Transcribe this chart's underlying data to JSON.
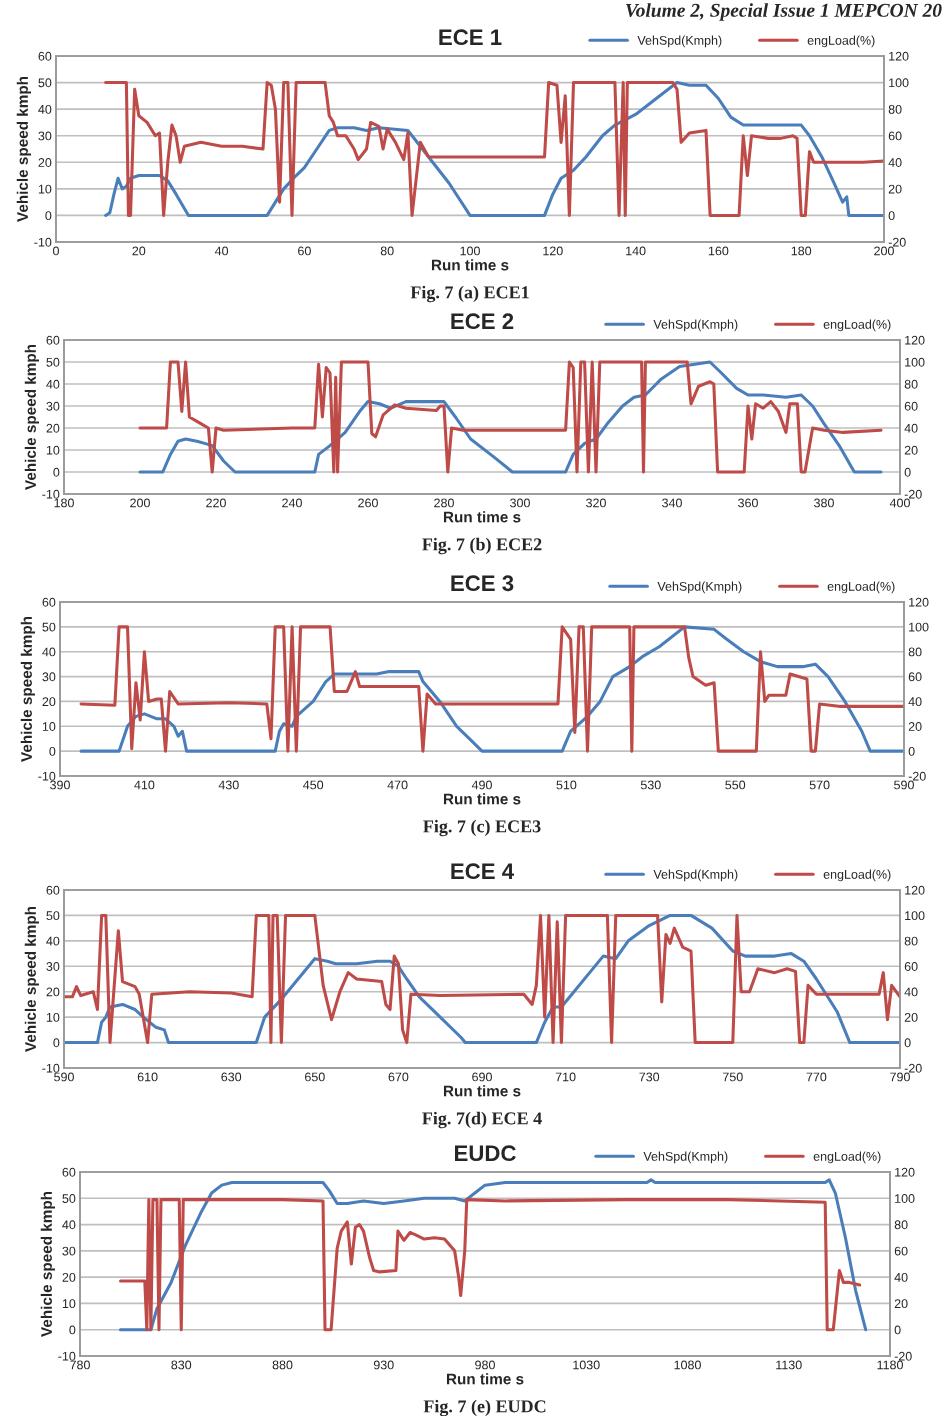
{
  "chart_data": [
    {
      "type": "line",
      "title": "ECE 1",
      "xlabel": "Run time s",
      "ylabel": "Vehicle speed kmph",
      "annotations": [
        "Volume 2, Special Issue 1 MEPCON 20",
        "Fig. 7 (a) ECE1"
      ],
      "xlim": [
        0,
        200
      ],
      "xticks": [
        0,
        20,
        40,
        60,
        80,
        100,
        120,
        140,
        160,
        180,
        200
      ],
      "ylim": [
        -10,
        60
      ],
      "yticks": [
        -10,
        0,
        10,
        20,
        30,
        40,
        50,
        60
      ],
      "y2lim": [
        -20,
        120
      ],
      "y2ticks": [
        -20,
        0,
        20,
        40,
        60,
        80,
        100,
        120
      ],
      "grid": "y",
      "legend": "top right",
      "series": [
        {
          "name": "VehSpd(Kmph)",
          "color": "#4a7ebb",
          "x": [
            12,
            13,
            14,
            15,
            16,
            17,
            18,
            20,
            25,
            27,
            29,
            32,
            51,
            53,
            55,
            58,
            60,
            63,
            66,
            68,
            72,
            75,
            78,
            85,
            87,
            90,
            95,
            100,
            118,
            120,
            122,
            125,
            128,
            132,
            135,
            140,
            145,
            150,
            153,
            157,
            160,
            163,
            166,
            180,
            182,
            185,
            188,
            190,
            191,
            191.5,
            200
          ],
          "values": [
            0,
            1,
            8,
            14,
            10,
            11,
            14,
            15,
            15,
            13,
            8,
            0,
            0,
            5,
            10,
            15,
            18,
            25,
            32,
            33,
            33,
            32,
            33,
            32,
            28,
            22,
            12,
            0,
            0,
            8,
            14,
            17,
            22,
            30,
            34,
            38,
            44,
            50,
            49,
            49,
            44,
            37,
            34,
            34,
            30,
            22,
            12,
            5,
            7,
            0,
            0
          ]
        },
        {
          "name": "engLoad(%)",
          "color": "#be4b48",
          "axis": "y2",
          "x": [
            12,
            17,
            17.5,
            18,
            19,
            20,
            22,
            24,
            25,
            26,
            27,
            28,
            29,
            30,
            31,
            35,
            40,
            45,
            50,
            51,
            52,
            53,
            54,
            55,
            56,
            57,
            58,
            65,
            66,
            67,
            68,
            70,
            72,
            73,
            75,
            76,
            78,
            79,
            80,
            82,
            84,
            85,
            86,
            88,
            90,
            100,
            110,
            118,
            119,
            121,
            122,
            123,
            124,
            125,
            135,
            136,
            137,
            137.5,
            138,
            149,
            150,
            151,
            153,
            157,
            158,
            165,
            166,
            167,
            168,
            172,
            175,
            178,
            179,
            180,
            181,
            182,
            183,
            190,
            195,
            200
          ],
          "values": [
            100,
            100,
            0,
            0,
            95,
            75,
            70,
            60,
            62,
            0,
            40,
            68,
            60,
            40,
            52,
            55,
            52,
            52,
            50,
            100,
            98,
            80,
            10,
            100,
            100,
            0,
            100,
            100,
            75,
            70,
            60,
            60,
            50,
            42,
            50,
            70,
            67,
            50,
            65,
            55,
            42,
            62,
            0,
            55,
            44,
            44,
            44,
            44,
            100,
            98,
            55,
            90,
            0,
            100,
            100,
            0,
            100,
            0,
            100,
            100,
            95,
            55,
            62,
            64,
            0,
            0,
            60,
            30,
            60,
            58,
            58,
            60,
            58,
            0,
            0,
            48,
            40,
            40,
            40,
            41
          ]
        }
      ]
    },
    {
      "type": "line",
      "title": "ECE 2",
      "xlabel": "Run time s",
      "ylabel": "Vehicle speed kmph",
      "annotations": [
        "Fig. 7 (b) ECE2"
      ],
      "xlim": [
        180,
        400
      ],
      "xticks": [
        180,
        200,
        220,
        240,
        260,
        280,
        300,
        320,
        340,
        360,
        380,
        400
      ],
      "ylim": [
        -10,
        60
      ],
      "yticks": [
        -10,
        0,
        10,
        20,
        30,
        40,
        50,
        60
      ],
      "y2lim": [
        -20,
        120
      ],
      "y2ticks": [
        -20,
        0,
        20,
        40,
        60,
        80,
        100,
        120
      ],
      "grid": "y",
      "legend": "top right",
      "series": [
        {
          "name": "VehSpd(Kmph)",
          "color": "#4a7ebb",
          "x": [
            200,
            206,
            208,
            210,
            212,
            215,
            217,
            219,
            222,
            225,
            246,
            247,
            250,
            254,
            258,
            260,
            263,
            266,
            270,
            278,
            280,
            283,
            287,
            293,
            298,
            312,
            314,
            317,
            320,
            323,
            327,
            330,
            333,
            337,
            342,
            350,
            353,
            357,
            360,
            364,
            370,
            374,
            377,
            380,
            384,
            387,
            388,
            395
          ],
          "values": [
            0,
            0,
            8,
            14,
            15,
            14,
            13,
            12,
            5,
            0,
            0,
            8,
            12,
            18,
            28,
            32,
            31,
            29,
            32,
            32,
            32,
            25,
            15,
            7,
            0,
            0,
            8,
            13,
            15,
            22,
            30,
            34,
            35,
            42,
            48,
            50,
            45,
            38,
            35,
            35,
            34,
            35,
            30,
            22,
            12,
            3,
            0,
            0
          ]
        },
        {
          "name": "engLoad(%)",
          "color": "#be4b48",
          "axis": "y2",
          "x": [
            200,
            207,
            208,
            210,
            211,
            212,
            213,
            216,
            218,
            219,
            220,
            222,
            240,
            246,
            247,
            248,
            249,
            250,
            251,
            251.5,
            252,
            253,
            260,
            261,
            262,
            264,
            267,
            270,
            278,
            279,
            280,
            281,
            282,
            285,
            300,
            312,
            313,
            314,
            315,
            316,
            317,
            318,
            319,
            320,
            321,
            332,
            332.5,
            333,
            344,
            345,
            347,
            350,
            351,
            352,
            359,
            360,
            361,
            362,
            364,
            366,
            368,
            370,
            371,
            373,
            374,
            375,
            377,
            380,
            385,
            395
          ],
          "values": [
            40,
            40,
            100,
            100,
            55,
            100,
            50,
            44,
            40,
            0,
            40,
            38,
            40,
            40,
            98,
            50,
            95,
            90,
            0,
            86,
            0,
            100,
            100,
            35,
            32,
            52,
            61,
            58,
            56,
            60,
            60,
            0,
            40,
            38,
            38,
            38,
            100,
            95,
            0,
            100,
            100,
            0,
            100,
            0,
            100,
            100,
            0,
            100,
            100,
            62,
            78,
            82,
            80,
            0,
            0,
            60,
            30,
            62,
            58,
            64,
            55,
            36,
            62,
            62,
            0,
            0,
            40,
            38,
            36,
            38
          ]
        }
      ]
    },
    {
      "type": "line",
      "title": "ECE 3",
      "xlabel": "Run time s",
      "ylabel": "Vehicle speed kmph",
      "annotations": [
        "Fig. 7 (c) ECE3"
      ],
      "xlim": [
        390,
        590
      ],
      "xticks": [
        390,
        410,
        430,
        450,
        470,
        490,
        510,
        530,
        550,
        570,
        590
      ],
      "ylim": [
        -10,
        60
      ],
      "yticks": [
        -10,
        0,
        10,
        20,
        30,
        40,
        50,
        60
      ],
      "y2lim": [
        -20,
        120
      ],
      "y2ticks": [
        -20,
        0,
        20,
        40,
        60,
        80,
        100,
        120
      ],
      "grid": "y",
      "legend": "top right",
      "series": [
        {
          "name": "VehSpd(Kmph)",
          "color": "#4a7ebb",
          "x": [
            395,
            404,
            406,
            408,
            410,
            413,
            415,
            417,
            418,
            419,
            420,
            441,
            442,
            443,
            445,
            446,
            450,
            453,
            455,
            465,
            468,
            475,
            476,
            480,
            484,
            487,
            490,
            509,
            511,
            513,
            515,
            518,
            521,
            525,
            528,
            532,
            538,
            545,
            548,
            552,
            556,
            560,
            566,
            569,
            572,
            576,
            580,
            582,
            590
          ],
          "values": [
            0,
            0,
            10,
            14,
            15,
            13,
            13,
            10,
            6,
            8,
            0,
            0,
            8,
            11,
            10,
            14,
            20,
            28,
            31,
            31,
            32,
            32,
            28,
            20,
            10,
            5,
            0,
            0,
            8,
            11,
            14,
            20,
            30,
            34,
            38,
            42,
            50,
            49,
            45,
            40,
            36,
            34,
            34,
            35,
            30,
            20,
            8,
            0,
            0
          ]
        },
        {
          "name": "engLoad(%)",
          "color": "#be4b48",
          "axis": "y2",
          "x": [
            395,
            403,
            404,
            406,
            407,
            408,
            409,
            410,
            411,
            413,
            414,
            415,
            416,
            418,
            430,
            439,
            440,
            441,
            443,
            444,
            445,
            446,
            447,
            454,
            455,
            458,
            460,
            461,
            470,
            475,
            476,
            477,
            479,
            500,
            508,
            509,
            511,
            512,
            513,
            514,
            515,
            516,
            525,
            525.5,
            526,
            538,
            539,
            540,
            543,
            545,
            546,
            555,
            556,
            557,
            558,
            562,
            563,
            565,
            567,
            568,
            569,
            570,
            575,
            590
          ],
          "values": [
            38,
            37,
            100,
            100,
            2,
            55,
            25,
            80,
            40,
            42,
            42,
            0,
            48,
            38,
            39,
            38,
            10,
            100,
            100,
            0,
            100,
            0,
            100,
            100,
            48,
            48,
            64,
            52,
            52,
            52,
            0,
            46,
            38,
            38,
            38,
            100,
            90,
            15,
            100,
            100,
            0,
            100,
            100,
            0,
            100,
            100,
            75,
            60,
            53,
            55,
            0,
            0,
            80,
            40,
            45,
            45,
            62,
            60,
            58,
            0,
            0,
            38,
            36,
            36
          ]
        }
      ]
    },
    {
      "type": "line",
      "title": "ECE 4",
      "xlabel": "Run time s",
      "ylabel": "Vehicle speed kmph",
      "annotations": [
        "Fig. 7(d) ECE 4"
      ],
      "xlim": [
        590,
        790
      ],
      "xticks": [
        590,
        610,
        630,
        650,
        670,
        690,
        710,
        730,
        750,
        770,
        790
      ],
      "ylim": [
        -10,
        60
      ],
      "yticks": [
        -10,
        0,
        10,
        20,
        30,
        40,
        50,
        60
      ],
      "y2lim": [
        -20,
        120
      ],
      "y2ticks": [
        -20,
        0,
        20,
        40,
        60,
        80,
        100,
        120
      ],
      "grid": "y",
      "legend": "top right",
      "series": [
        {
          "name": "VehSpd(Kmph)",
          "color": "#4a7ebb",
          "x": [
            590,
            598,
            599,
            600,
            601,
            604,
            607,
            609,
            612,
            614,
            615,
            636,
            638,
            642,
            646,
            650,
            653,
            655,
            660,
            665,
            668,
            670,
            672,
            675,
            680,
            685,
            686,
            703,
            705,
            707,
            709,
            712,
            716,
            719,
            722,
            725,
            730,
            735,
            740,
            745,
            750,
            753,
            760,
            764,
            767,
            770,
            775,
            778,
            790
          ],
          "values": [
            0,
            0,
            8,
            10,
            14,
            15,
            13,
            10,
            6,
            5,
            0,
            0,
            10,
            17,
            25,
            33,
            32,
            31,
            31,
            32,
            32,
            30,
            25,
            18,
            10,
            2,
            0,
            0,
            8,
            14,
            14,
            20,
            28,
            34,
            33,
            40,
            46,
            50,
            50,
            45,
            36,
            34,
            34,
            35,
            32,
            25,
            12,
            0,
            0
          ]
        },
        {
          "name": "engLoad(%)",
          "color": "#be4b48",
          "axis": "y2",
          "x": [
            590,
            592,
            593,
            594,
            597,
            598,
            599,
            600,
            601,
            603,
            604,
            607,
            608,
            610,
            611,
            620,
            630,
            635,
            636,
            639,
            639.5,
            640,
            641,
            642,
            643,
            650,
            652,
            654,
            656,
            658,
            660,
            666,
            667,
            668,
            669,
            670,
            671,
            672,
            673,
            680,
            700,
            702,
            703,
            704,
            705,
            706,
            707,
            708,
            709,
            710,
            720,
            721,
            722,
            732,
            733,
            734,
            735,
            736,
            738,
            740,
            741,
            750,
            751,
            752,
            754,
            756,
            760,
            763,
            765,
            766,
            767,
            768,
            770,
            785,
            786,
            787,
            788,
            790
          ],
          "values": [
            36,
            36,
            44,
            37,
            40,
            26,
            100,
            100,
            0,
            88,
            48,
            44,
            38,
            0,
            38,
            40,
            39,
            36,
            100,
            100,
            0,
            100,
            100,
            0,
            100,
            100,
            45,
            18,
            40,
            55,
            50,
            48,
            30,
            26,
            68,
            62,
            10,
            0,
            38,
            37,
            38,
            30,
            45,
            100,
            20,
            100,
            0,
            95,
            0,
            100,
            100,
            0,
            100,
            100,
            32,
            85,
            78,
            90,
            75,
            72,
            0,
            0,
            100,
            40,
            40,
            58,
            55,
            58,
            56,
            0,
            0,
            45,
            38,
            38,
            55,
            18,
            45,
            36
          ]
        }
      ]
    },
    {
      "type": "line",
      "title": "EUDC",
      "xlabel": "Run time s",
      "ylabel": "Vehicle speed kmph",
      "annotations": [
        "Fig. 7 (e) EUDC"
      ],
      "xlim": [
        780,
        1180
      ],
      "xticks": [
        780,
        830,
        880,
        930,
        980,
        1030,
        1080,
        1130,
        1180
      ],
      "ylim": [
        -10,
        60
      ],
      "yticks": [
        -10,
        0,
        10,
        20,
        30,
        40,
        50,
        60
      ],
      "y2lim": [
        -20,
        120
      ],
      "y2ticks": [
        -20,
        0,
        20,
        40,
        60,
        80,
        100,
        120
      ],
      "grid": "y",
      "legend": "top right",
      "series": [
        {
          "name": "VehSpd(Kmph)",
          "color": "#4a7ebb",
          "x": [
            800,
            815,
            818,
            825,
            832,
            840,
            845,
            850,
            855,
            900,
            903,
            907,
            912,
            920,
            930,
            940,
            950,
            965,
            970,
            975,
            980,
            990,
            1060,
            1062,
            1064,
            1148,
            1150,
            1153,
            1158,
            1163,
            1167,
            1168
          ],
          "values": [
            0,
            0,
            8,
            18,
            32,
            45,
            52,
            55,
            56,
            56,
            53,
            48,
            48,
            49,
            48,
            49,
            50,
            50,
            49,
            52,
            55,
            56,
            56,
            57,
            56,
            56,
            57,
            52,
            35,
            15,
            3,
            0
          ]
        },
        {
          "name": "engLoad(%)",
          "color": "#be4b48",
          "axis": "y2",
          "x": [
            800,
            812,
            813,
            814,
            815,
            816,
            818,
            819,
            820,
            829,
            830,
            831,
            850,
            880,
            900,
            901,
            904,
            907,
            909,
            912,
            914,
            916,
            918,
            920,
            923,
            925,
            928,
            936,
            937,
            940,
            943,
            946,
            950,
            955,
            960,
            965,
            967,
            968,
            970,
            971,
            990,
            1050,
            1100,
            1148,
            1149,
            1152,
            1155,
            1157,
            1160,
            1165
          ],
          "values": [
            37,
            37,
            0,
            99,
            0,
            99,
            99,
            0,
            99,
            99,
            0,
            99,
            99,
            99,
            98,
            0,
            0,
            62,
            75,
            82,
            50,
            78,
            80,
            75,
            55,
            45,
            44,
            45,
            75,
            68,
            74,
            72,
            69,
            70,
            69,
            60,
            40,
            26,
            60,
            99,
            98,
            99,
            99,
            97,
            0,
            0,
            45,
            36,
            36,
            34
          ]
        }
      ]
    }
  ]
}
